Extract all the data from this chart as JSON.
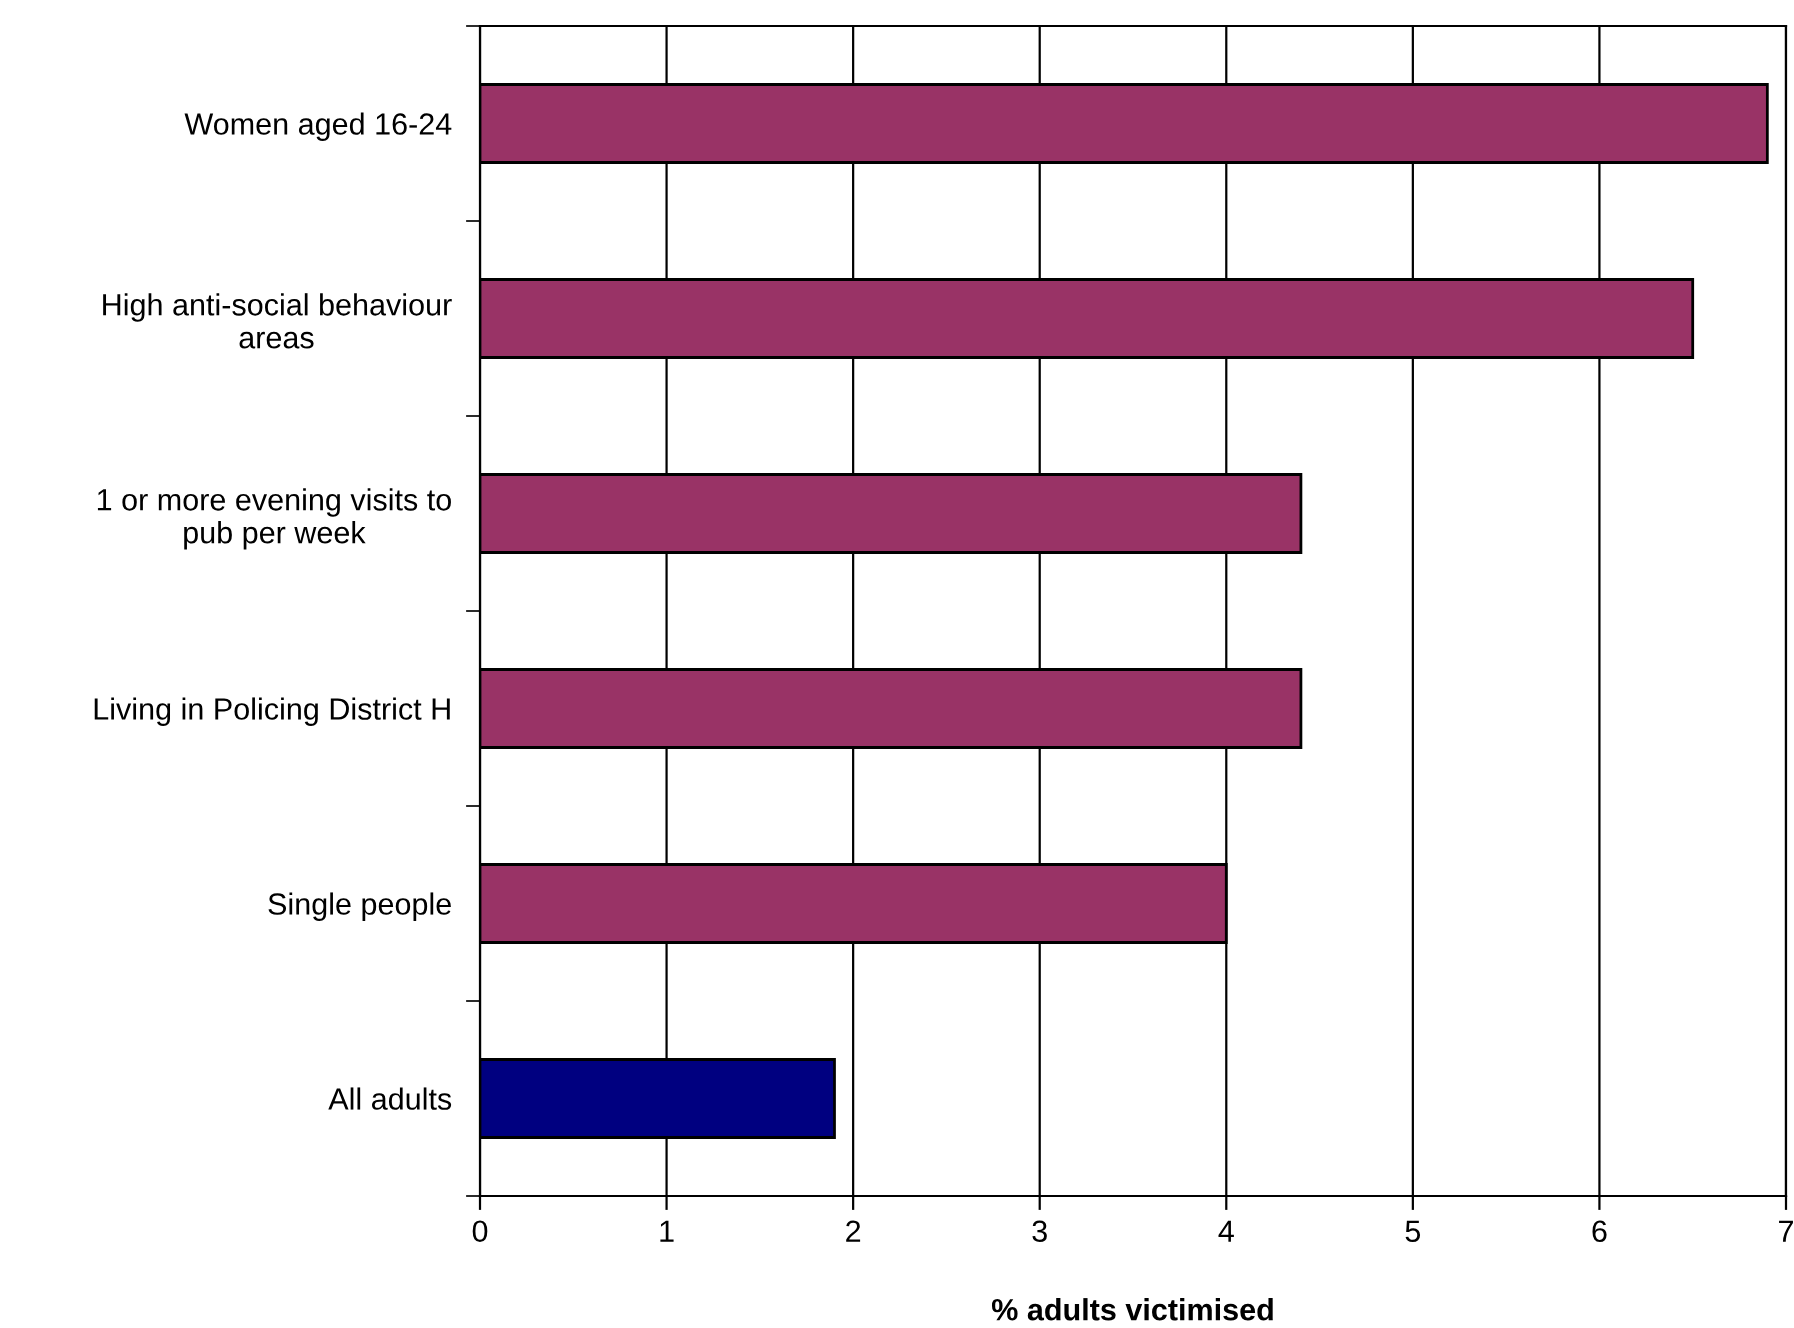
{
  "chart_data": {
    "type": "bar",
    "orientation": "horizontal",
    "xlabel": "% adults victimised",
    "categories": [
      "Women aged 16-24",
      "High anti-social behaviour\nareas",
      "1 or more evening visits to\npub per week",
      "Living in Policing District H",
      "Single people",
      "All adults"
    ],
    "values": [
      6.9,
      6.5,
      4.4,
      4.4,
      4.0,
      1.9
    ],
    "colors": [
      "#993366",
      "#993366",
      "#993366",
      "#993366",
      "#993366",
      "#000080"
    ],
    "xlim": [
      0,
      7
    ],
    "xticks": [
      0,
      1,
      2,
      3,
      4,
      5,
      6,
      7
    ],
    "grid": "x",
    "legend": false
  }
}
